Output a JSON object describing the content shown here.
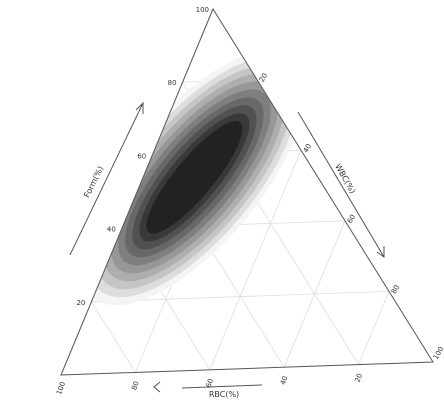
{
  "chart_data": {
    "type": "ternary-contour",
    "title": "",
    "axes": {
      "left": {
        "label": "Form(%)",
        "ticks": [
          "20",
          "40",
          "60",
          "80",
          "100"
        ]
      },
      "right": {
        "label": "WBC(%)",
        "ticks": [
          "20",
          "40",
          "60",
          "80",
          "100"
        ]
      },
      "bottom": {
        "label": "RBC(%)",
        "ticks": [
          "100",
          "80",
          "60",
          "40",
          "20"
        ]
      }
    },
    "density_peaks": [
      {
        "form": 63,
        "wbc": 18,
        "rbc": 19,
        "level": "max"
      },
      {
        "form": 44,
        "wbc": 10,
        "rbc": 46,
        "level": "max"
      }
    ],
    "contour_levels": 10,
    "grid": true
  }
}
